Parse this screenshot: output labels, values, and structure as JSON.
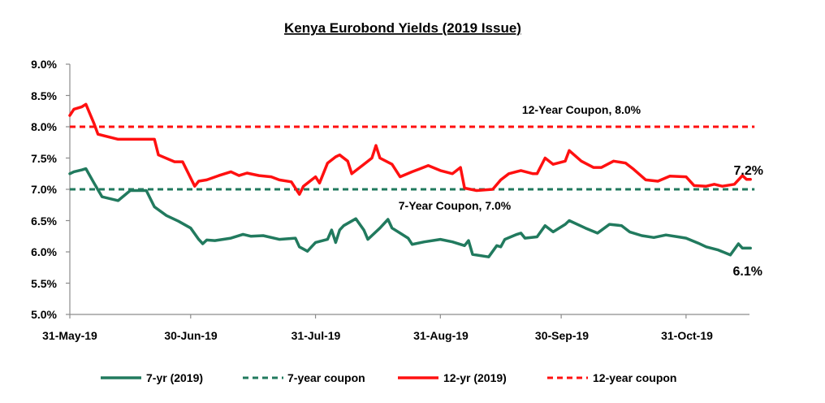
{
  "chart_data": {
    "type": "line",
    "title": "Kenya Eurobond Yields (2019 Issue)",
    "xlabel": "",
    "ylabel": "",
    "ylim": [
      5.0,
      9.0
    ],
    "y_ticks": [
      "5.0%",
      "5.5%",
      "6.0%",
      "6.5%",
      "7.0%",
      "7.5%",
      "8.0%",
      "8.5%",
      "9.0%"
    ],
    "x_ticks": [
      "31-May-19",
      "30-Jun-19",
      "31-Jul-19",
      "31-Aug-19",
      "30-Sep-19",
      "31-Oct-19"
    ],
    "x_range": [
      "31-May-19",
      "17-Nov-19"
    ],
    "grid": false,
    "legend_position": "bottom",
    "series": [
      {
        "name": "7-yr (2019)",
        "color": "#217a5e",
        "style": "solid",
        "points": [
          [
            "31-May-19",
            7.25
          ],
          [
            "1-Jun-19",
            7.28
          ],
          [
            "3-Jun-19",
            7.31
          ],
          [
            "4-Jun-19",
            7.33
          ],
          [
            "6-Jun-19",
            7.1
          ],
          [
            "8-Jun-19",
            6.88
          ],
          [
            "12-Jun-19",
            6.82
          ],
          [
            "15-Jun-19",
            6.98
          ],
          [
            "19-Jun-19",
            6.98
          ],
          [
            "21-Jun-19",
            6.72
          ],
          [
            "24-Jun-19",
            6.58
          ],
          [
            "27-Jun-19",
            6.49
          ],
          [
            "30-Jun-19",
            6.38
          ],
          [
            "2-Jul-19",
            6.2
          ],
          [
            "3-Jul-19",
            6.13
          ],
          [
            "4-Jul-19",
            6.19
          ],
          [
            "6-Jul-19",
            6.18
          ],
          [
            "10-Jul-19",
            6.22
          ],
          [
            "13-Jul-19",
            6.28
          ],
          [
            "15-Jul-19",
            6.25
          ],
          [
            "18-Jul-19",
            6.26
          ],
          [
            "22-Jul-19",
            6.2
          ],
          [
            "26-Jul-19",
            6.22
          ],
          [
            "27-Jul-19",
            6.08
          ],
          [
            "29-Jul-19",
            6.01
          ],
          [
            "31-Jul-19",
            6.15
          ],
          [
            "3-Aug-19",
            6.2
          ],
          [
            "4-Aug-19",
            6.35
          ],
          [
            "5-Aug-19",
            6.15
          ],
          [
            "6-Aug-19",
            6.35
          ],
          [
            "7-Aug-19",
            6.42
          ],
          [
            "10-Aug-19",
            6.53
          ],
          [
            "12-Aug-19",
            6.35
          ],
          [
            "13-Aug-19",
            6.2
          ],
          [
            "16-Aug-19",
            6.38
          ],
          [
            "18-Aug-19",
            6.52
          ],
          [
            "19-Aug-19",
            6.38
          ],
          [
            "21-Aug-19",
            6.3
          ],
          [
            "23-Aug-19",
            6.22
          ],
          [
            "24-Aug-19",
            6.12
          ],
          [
            "27-Aug-19",
            6.16
          ],
          [
            "31-Aug-19",
            6.2
          ],
          [
            "3-Sep-19",
            6.16
          ],
          [
            "6-Sep-19",
            6.1
          ],
          [
            "7-Sep-19",
            6.18
          ],
          [
            "8-Sep-19",
            5.96
          ],
          [
            "12-Sep-19",
            5.92
          ],
          [
            "14-Sep-19",
            6.1
          ],
          [
            "15-Sep-19",
            6.08
          ],
          [
            "16-Sep-19",
            6.2
          ],
          [
            "19-Sep-19",
            6.28
          ],
          [
            "20-Sep-19",
            6.3
          ],
          [
            "21-Sep-19",
            6.22
          ],
          [
            "24-Sep-19",
            6.24
          ],
          [
            "26-Sep-19",
            6.42
          ],
          [
            "28-Sep-19",
            6.32
          ],
          [
            "1-Oct-19",
            6.44
          ],
          [
            "2-Oct-19",
            6.5
          ],
          [
            "6-Oct-19",
            6.38
          ],
          [
            "9-Oct-19",
            6.3
          ],
          [
            "12-Oct-19",
            6.44
          ],
          [
            "15-Oct-19",
            6.42
          ],
          [
            "17-Oct-19",
            6.32
          ],
          [
            "20-Oct-19",
            6.26
          ],
          [
            "23-Oct-19",
            6.23
          ],
          [
            "26-Oct-19",
            6.27
          ],
          [
            "29-Oct-19",
            6.24
          ],
          [
            "31-Oct-19",
            6.22
          ],
          [
            "3-Nov-19",
            6.14
          ],
          [
            "5-Nov-19",
            6.08
          ],
          [
            "8-Nov-19",
            6.03
          ],
          [
            "11-Nov-19",
            5.95
          ],
          [
            "13-Nov-19",
            6.13
          ],
          [
            "14-Nov-19",
            6.06
          ],
          [
            "16-Nov-19",
            6.06
          ]
        ]
      },
      {
        "name": "7-year coupon",
        "color": "#217a5e",
        "style": "dashed",
        "points": [
          [
            "31-May-19",
            7.0
          ],
          [
            "17-Nov-19",
            7.0
          ]
        ]
      },
      {
        "name": "12-yr (2019)",
        "color": "#ff1010",
        "style": "solid",
        "points": [
          [
            "31-May-19",
            8.18
          ],
          [
            "1-Jun-19",
            8.28
          ],
          [
            "3-Jun-19",
            8.32
          ],
          [
            "4-Jun-19",
            8.36
          ],
          [
            "6-Jun-19",
            8.05
          ],
          [
            "7-Jun-19",
            7.88
          ],
          [
            "12-Jun-19",
            7.8
          ],
          [
            "17-Jun-19",
            7.8
          ],
          [
            "21-Jun-19",
            7.8
          ],
          [
            "22-Jun-19",
            7.55
          ],
          [
            "26-Jun-19",
            7.44
          ],
          [
            "28-Jun-19",
            7.44
          ],
          [
            "1-Jul-19",
            7.05
          ],
          [
            "2-Jul-19",
            7.13
          ],
          [
            "4-Jul-19",
            7.15
          ],
          [
            "7-Jul-19",
            7.22
          ],
          [
            "10-Jul-19",
            7.28
          ],
          [
            "12-Jul-19",
            7.22
          ],
          [
            "14-Jul-19",
            7.26
          ],
          [
            "17-Jul-19",
            7.22
          ],
          [
            "20-Jul-19",
            7.2
          ],
          [
            "22-Jul-19",
            7.15
          ],
          [
            "25-Jul-19",
            7.12
          ],
          [
            "27-Jul-19",
            6.92
          ],
          [
            "28-Jul-19",
            7.05
          ],
          [
            "31-Jul-19",
            7.2
          ],
          [
            "1-Aug-19",
            7.1
          ],
          [
            "3-Aug-19",
            7.42
          ],
          [
            "5-Aug-19",
            7.52
          ],
          [
            "6-Aug-19",
            7.55
          ],
          [
            "8-Aug-19",
            7.45
          ],
          [
            "9-Aug-19",
            7.25
          ],
          [
            "12-Aug-19",
            7.4
          ],
          [
            "14-Aug-19",
            7.5
          ],
          [
            "15-Aug-19",
            7.7
          ],
          [
            "16-Aug-19",
            7.5
          ],
          [
            "19-Aug-19",
            7.4
          ],
          [
            "21-Aug-19",
            7.2
          ],
          [
            "24-Aug-19",
            7.28
          ],
          [
            "26-Aug-19",
            7.33
          ],
          [
            "28-Aug-19",
            7.38
          ],
          [
            "31-Aug-19",
            7.3
          ],
          [
            "3-Sep-19",
            7.25
          ],
          [
            "5-Sep-19",
            7.35
          ],
          [
            "6-Sep-19",
            7.02
          ],
          [
            "9-Sep-19",
            6.98
          ],
          [
            "13-Sep-19",
            7.0
          ],
          [
            "15-Sep-19",
            7.15
          ],
          [
            "17-Sep-19",
            7.25
          ],
          [
            "20-Sep-19",
            7.3
          ],
          [
            "23-Sep-19",
            7.25
          ],
          [
            "24-Sep-19",
            7.25
          ],
          [
            "26-Sep-19",
            7.5
          ],
          [
            "28-Sep-19",
            7.4
          ],
          [
            "1-Oct-19",
            7.45
          ],
          [
            "2-Oct-19",
            7.62
          ],
          [
            "5-Oct-19",
            7.45
          ],
          [
            "8-Oct-19",
            7.35
          ],
          [
            "10-Oct-19",
            7.35
          ],
          [
            "13-Oct-19",
            7.45
          ],
          [
            "16-Oct-19",
            7.42
          ],
          [
            "18-Oct-19",
            7.32
          ],
          [
            "21-Oct-19",
            7.15
          ],
          [
            "24-Oct-19",
            7.13
          ],
          [
            "27-Oct-19",
            7.21
          ],
          [
            "31-Oct-19",
            7.2
          ],
          [
            "2-Nov-19",
            7.06
          ],
          [
            "5-Nov-19",
            7.05
          ],
          [
            "7-Nov-19",
            7.08
          ],
          [
            "9-Nov-19",
            7.05
          ],
          [
            "12-Nov-19",
            7.08
          ],
          [
            "14-Nov-19",
            7.22
          ],
          [
            "15-Nov-19",
            7.16
          ],
          [
            "16-Nov-19",
            7.16
          ]
        ]
      },
      {
        "name": "12-year coupon",
        "color": "#ff1010",
        "style": "dashed",
        "points": [
          [
            "31-May-19",
            8.0
          ],
          [
            "17-Nov-19",
            8.0
          ]
        ]
      }
    ],
    "annotations": {
      "coupon_12yr": "12-Year Coupon, 8.0%",
      "coupon_7yr": "7-Year Coupon, 7.0%",
      "end_12yr": "7.2%",
      "end_7yr": "6.1%"
    }
  }
}
